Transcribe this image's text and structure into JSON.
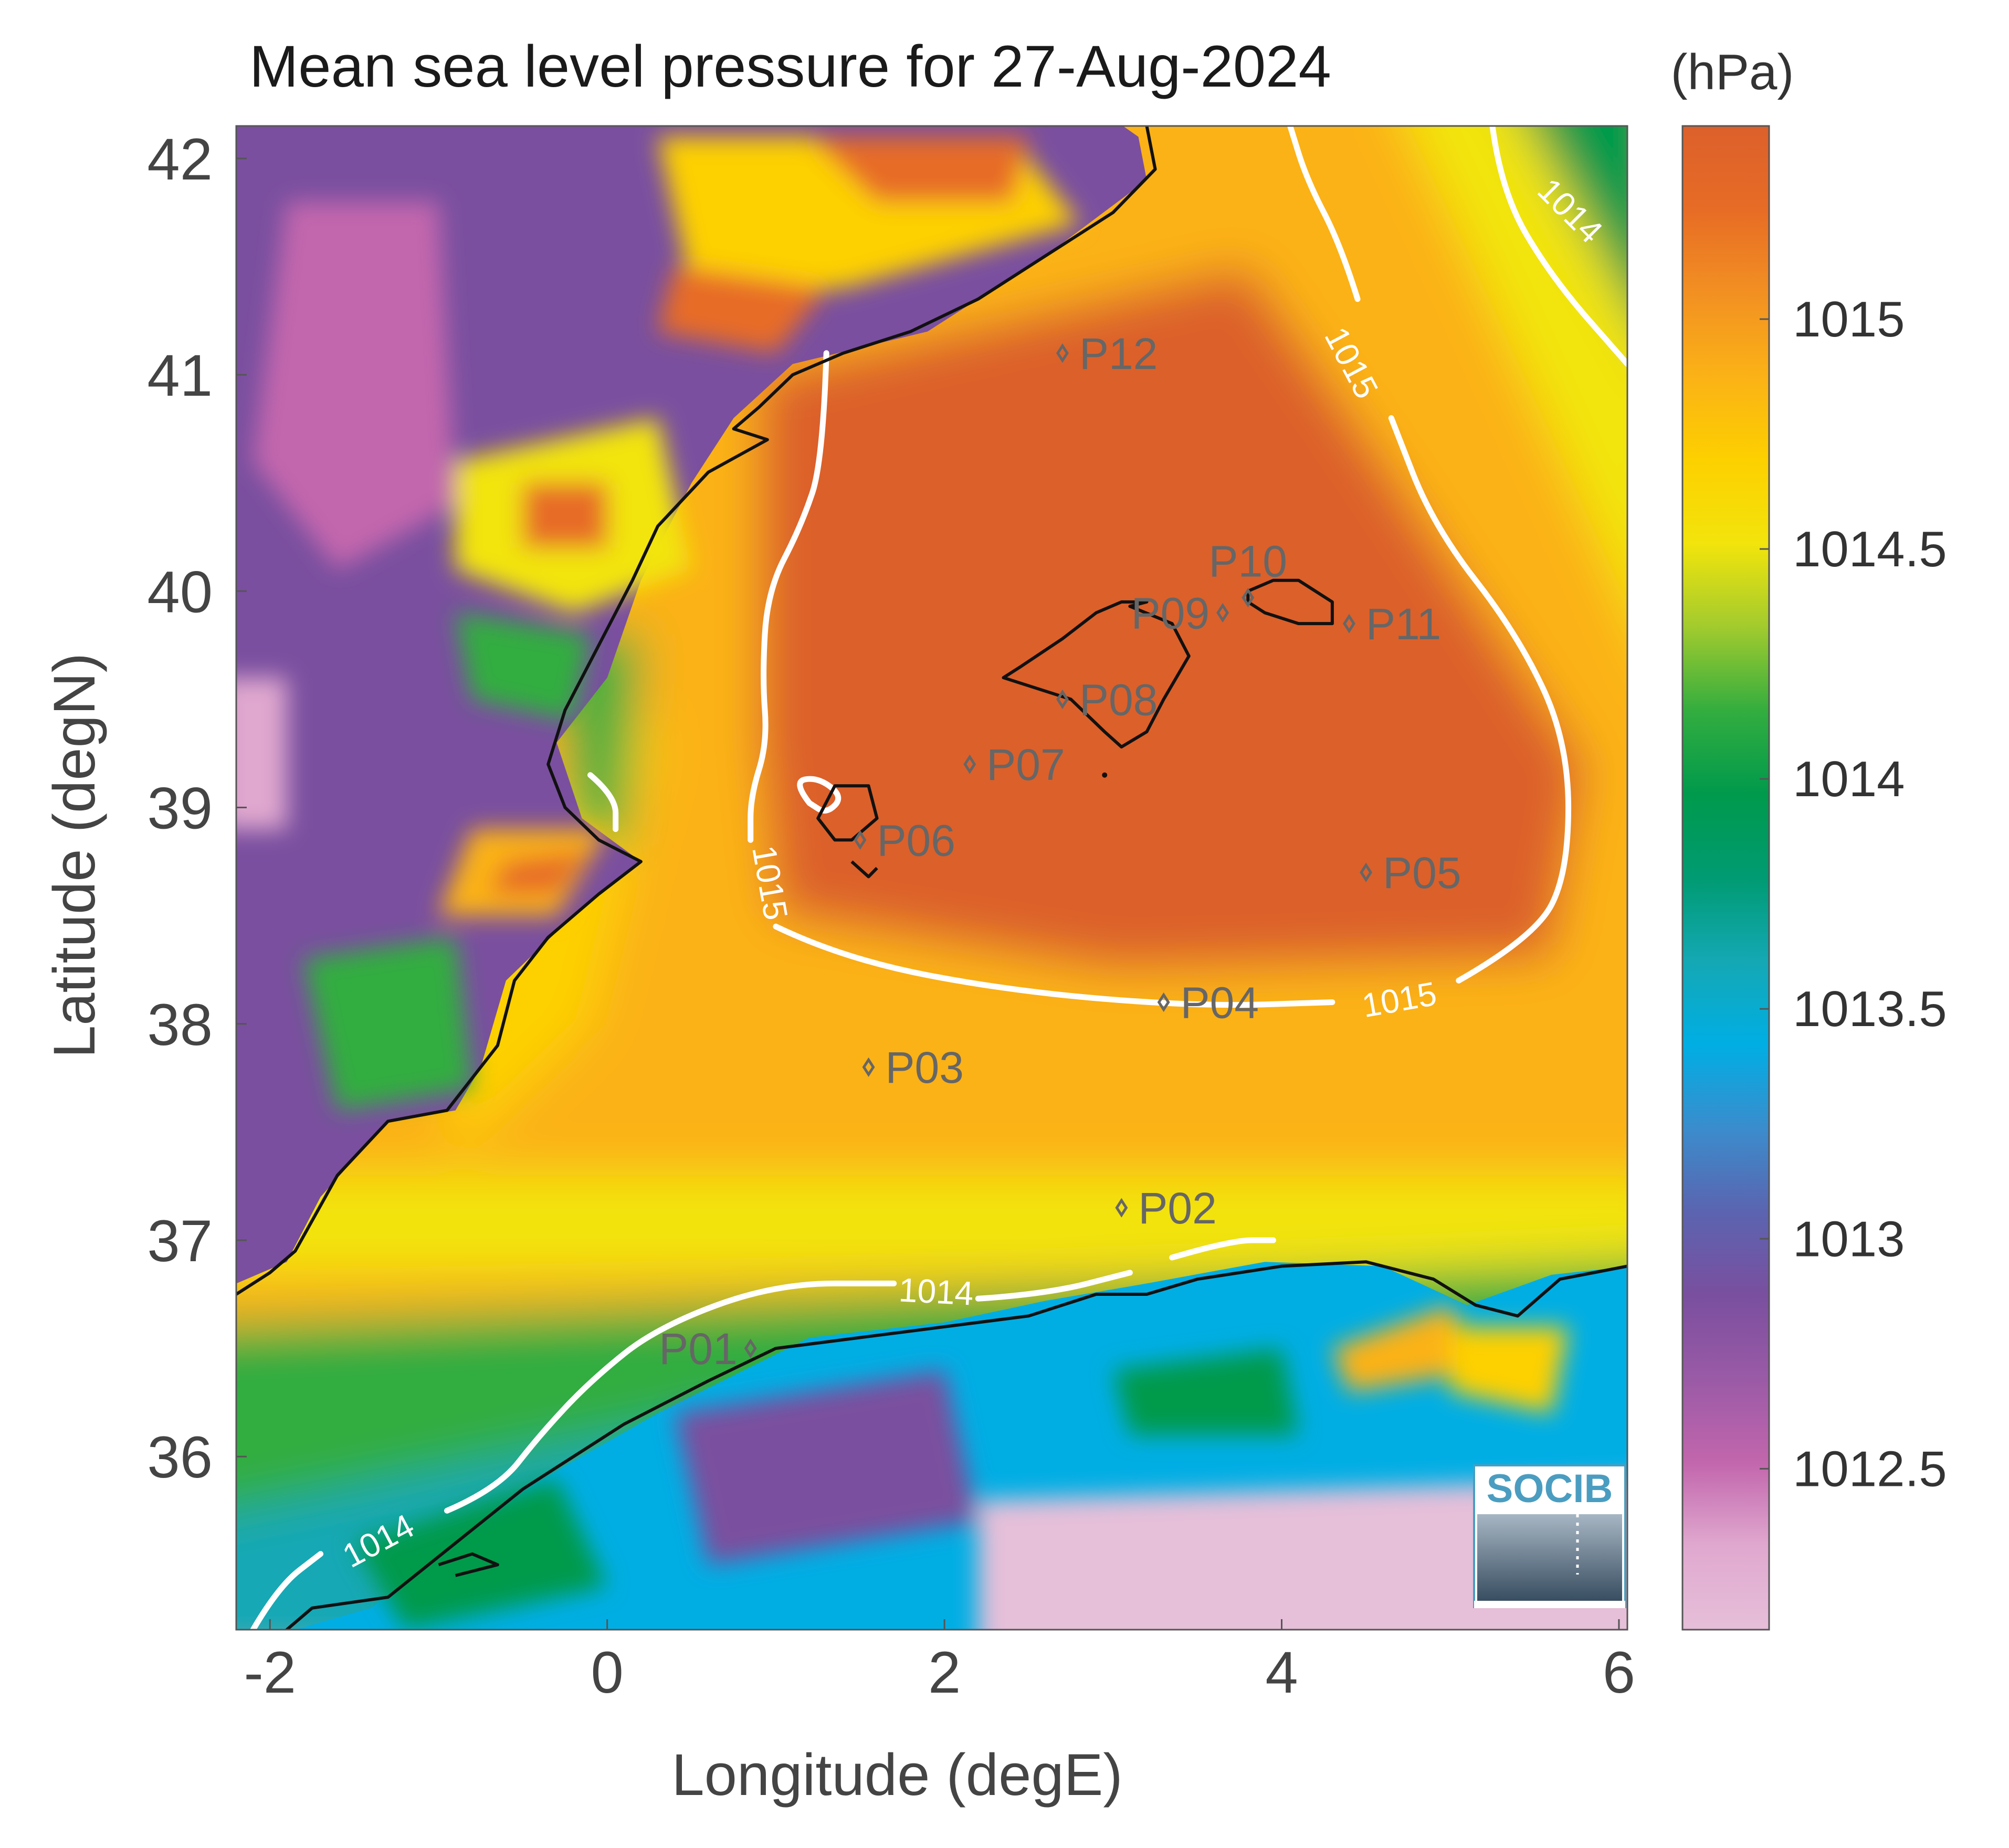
{
  "title": "Mean sea level pressure for 27-Aug-2024",
  "colorbar_unit": "(hPa)",
  "colorbar_colors": [
    "#e6bfd9",
    "#e0a8cf",
    "#c266ad",
    "#9a5aa6",
    "#7a4f9f",
    "#5b64b0",
    "#3b8ccc",
    "#00aee4",
    "#14a8b5",
    "#009b72",
    "#009a4c",
    "#33ad3f",
    "#a2cb2e",
    "#f2e40c",
    "#fdd000",
    "#fbb216",
    "#f29022",
    "#e76c25",
    "#dc602b"
  ],
  "land_color": "#e6bfd9",
  "contour_color": "#ffffff",
  "coast_color": "#111111",
  "logo_text": "SOCIB",
  "chart_data": {
    "type": "heatmap",
    "title": "Mean sea level pressure for 27-Aug-2024",
    "xlabel": "Longitude (degE)",
    "ylabel": "Latitude (degN)",
    "xlim": [
      -2.2,
      6.05
    ],
    "ylim": [
      35.2,
      42.15
    ],
    "x_ticks": [
      -2,
      0,
      2,
      4,
      6
    ],
    "y_ticks": [
      36,
      37,
      38,
      39,
      40,
      41,
      42
    ],
    "x_tick_labels": [
      "-2",
      "0",
      "2",
      "4",
      "6"
    ],
    "y_tick_labels": [
      "36",
      "37",
      "38",
      "39",
      "40",
      "41",
      "42"
    ],
    "colorbar": {
      "label": "(hPa)",
      "range": [
        1012.15,
        1015.42
      ],
      "ticks": [
        1012.5,
        1013,
        1013.5,
        1014,
        1014.5,
        1015
      ],
      "tick_labels": [
        "1012.5",
        "1013",
        "1013.5",
        "1014",
        "1014.5",
        "1015"
      ]
    },
    "contours": [
      {
        "level": 1015,
        "label": "1015"
      },
      {
        "level": 1014,
        "label": "1014"
      }
    ],
    "stations": [
      {
        "name": "P01",
        "lon": 0.85,
        "lat": 36.5
      },
      {
        "name": "P02",
        "lon": 3.05,
        "lat": 37.15
      },
      {
        "name": "P03",
        "lon": 1.55,
        "lat": 37.8
      },
      {
        "name": "P04",
        "lon": 3.3,
        "lat": 38.1
      },
      {
        "name": "P05",
        "lon": 4.5,
        "lat": 38.7
      },
      {
        "name": "P06",
        "lon": 1.5,
        "lat": 38.85
      },
      {
        "name": "P07",
        "lon": 2.15,
        "lat": 39.2
      },
      {
        "name": "P08",
        "lon": 2.7,
        "lat": 39.5
      },
      {
        "name": "P09",
        "lon": 3.65,
        "lat": 39.9
      },
      {
        "name": "P10",
        "lon": 3.8,
        "lat": 39.97
      },
      {
        "name": "P11",
        "lon": 4.4,
        "lat": 39.85
      },
      {
        "name": "P12",
        "lon": 2.7,
        "lat": 41.1
      }
    ]
  }
}
